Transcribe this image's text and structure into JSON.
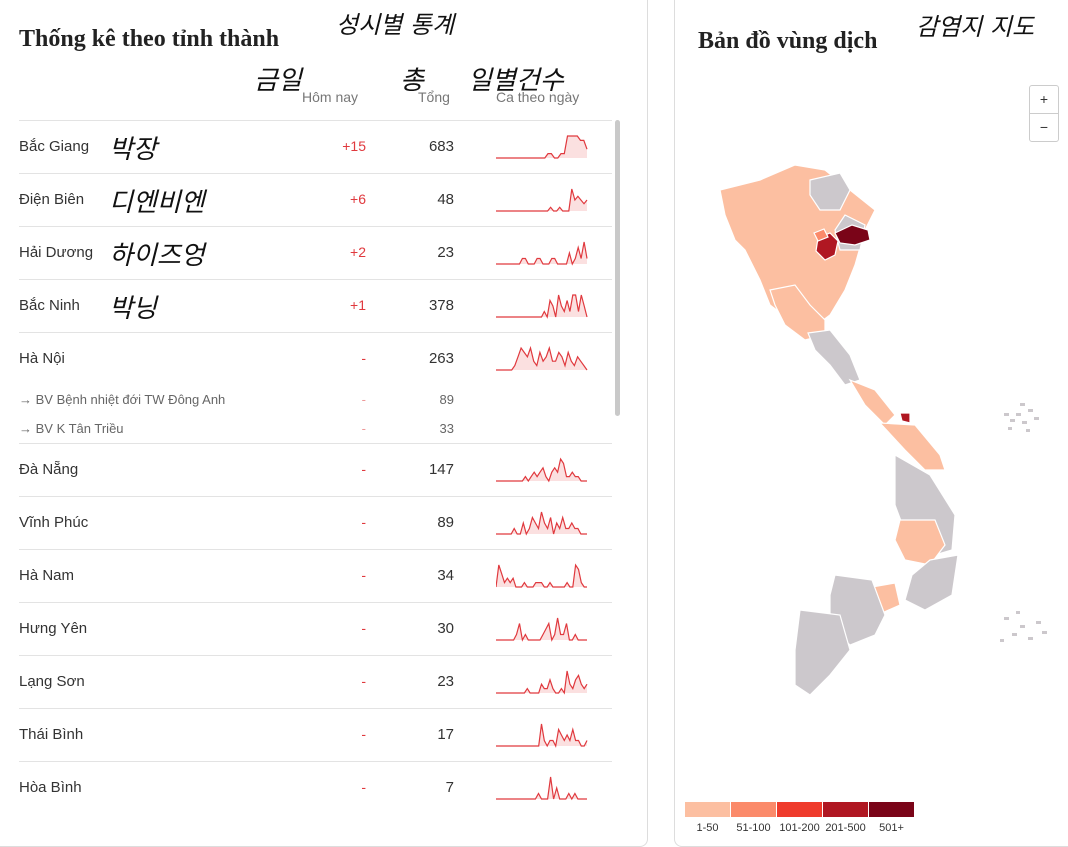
{
  "left": {
    "title": "Thống kê theo tỉnh thành",
    "title_ko": "성시별 통계",
    "headers": {
      "today": "Hôm nay",
      "total": "Tổng",
      "daily": "Ca theo ngày"
    },
    "headers_ko": {
      "today": "금일",
      "total": "총",
      "daily": "일별건수"
    },
    "rows": [
      {
        "name": "Bắc Giang",
        "ko": "박장",
        "today": "+15",
        "total": "683",
        "spark": [
          0,
          0,
          0,
          0,
          0,
          0,
          0,
          0,
          0,
          0,
          0,
          0,
          0,
          0,
          0,
          0,
          1,
          1,
          0,
          0,
          1,
          1,
          5,
          5,
          5,
          5,
          4,
          4,
          2
        ]
      },
      {
        "name": "Điện Biên",
        "ko": "디엔비엔",
        "today": "+6",
        "total": "48",
        "spark": [
          0,
          0,
          0,
          0,
          0,
          0,
          0,
          0,
          0,
          0,
          0,
          0,
          0,
          0,
          0,
          0,
          0,
          0,
          1,
          0,
          0,
          1,
          0,
          0,
          0,
          6,
          3,
          4,
          3,
          2,
          3
        ]
      },
      {
        "name": "Hải Dương",
        "ko": "하이즈엉",
        "today": "+2",
        "total": "23",
        "spark": [
          0,
          0,
          0,
          0,
          0,
          0,
          0,
          0,
          0,
          1,
          1,
          0,
          0,
          0,
          1,
          1,
          0,
          0,
          0,
          1,
          1,
          0,
          0,
          0,
          0,
          2,
          0,
          1,
          3,
          1,
          4,
          1
        ]
      },
      {
        "name": "Bắc Ninh",
        "ko": "박닝",
        "today": "+1",
        "total": "378",
        "spark": [
          0,
          0,
          0,
          0,
          0,
          0,
          0,
          0,
          0,
          0,
          0,
          0,
          0,
          0,
          0,
          0,
          0,
          1,
          0,
          3,
          2,
          0,
          4,
          2,
          1,
          3,
          1,
          4,
          4,
          1,
          4,
          2,
          0
        ]
      },
      {
        "name": "Hà Nội",
        "today": "-",
        "total": "263",
        "spark": [
          0,
          0,
          0,
          0,
          0,
          0,
          1,
          3,
          5,
          4,
          3,
          5,
          2,
          1,
          4,
          2,
          3,
          5,
          2,
          2,
          4,
          3,
          1,
          4,
          2,
          1,
          3,
          2,
          1,
          0
        ]
      },
      {
        "sub": true,
        "name": "→ BV Bệnh nhiệt đới TW Đông Anh",
        "today": "-",
        "total": "89"
      },
      {
        "sub": true,
        "name": "→ BV K Tân Triều",
        "today": "-",
        "total": "33"
      },
      {
        "name": "Đà Nẵng",
        "today": "-",
        "total": "147",
        "spark": [
          0,
          0,
          0,
          0,
          0,
          0,
          0,
          0,
          0,
          0,
          1,
          0,
          1,
          2,
          1,
          2,
          3,
          1,
          0,
          2,
          3,
          2,
          5,
          4,
          1,
          1,
          2,
          1,
          1,
          0,
          0,
          0
        ]
      },
      {
        "name": "Vĩnh Phúc",
        "today": "-",
        "total": "89",
        "spark": [
          0,
          0,
          0,
          0,
          0,
          0,
          1,
          0,
          0,
          2,
          0,
          1,
          3,
          2,
          1,
          4,
          2,
          1,
          3,
          0,
          2,
          1,
          3,
          1,
          1,
          2,
          1,
          1,
          0,
          0,
          0
        ]
      },
      {
        "name": "Hà Nam",
        "today": "-",
        "total": "34",
        "spark": [
          0,
          5,
          3,
          1,
          2,
          1,
          2,
          0,
          0,
          0,
          1,
          0,
          0,
          0,
          1,
          1,
          1,
          0,
          0,
          1,
          0,
          0,
          0,
          0,
          0,
          1,
          0,
          0,
          5,
          4,
          1,
          0,
          0
        ]
      },
      {
        "name": "Hưng Yên",
        "today": "-",
        "total": "30",
        "spark": [
          0,
          0,
          0,
          0,
          0,
          0,
          0,
          1,
          3,
          0,
          1,
          0,
          0,
          0,
          0,
          0,
          1,
          2,
          3,
          0,
          1,
          4,
          1,
          1,
          3,
          0,
          0,
          1,
          0,
          0,
          0,
          0
        ]
      },
      {
        "name": "Lạng Sơn",
        "today": "-",
        "total": "23",
        "spark": [
          0,
          0,
          0,
          0,
          0,
          0,
          0,
          0,
          0,
          0,
          0,
          1,
          0,
          0,
          0,
          0,
          2,
          1,
          1,
          3,
          1,
          0,
          0,
          1,
          0,
          5,
          2,
          1,
          3,
          4,
          2,
          1,
          2
        ]
      },
      {
        "name": "Thái Bình",
        "today": "-",
        "total": "17",
        "spark": [
          0,
          0,
          0,
          0,
          0,
          0,
          0,
          0,
          0,
          0,
          0,
          0,
          0,
          0,
          0,
          0,
          4,
          1,
          0,
          1,
          1,
          0,
          3,
          2,
          1,
          2,
          1,
          3,
          1,
          1,
          0,
          0,
          1
        ]
      },
      {
        "name": "Hòa Bình",
        "today": "-",
        "total": "7",
        "spark": [
          0,
          0,
          0,
          0,
          0,
          0,
          0,
          0,
          0,
          0,
          0,
          0,
          0,
          0,
          1,
          0,
          0,
          0,
          4,
          0,
          2,
          0,
          0,
          0,
          1,
          0,
          1,
          0,
          0,
          0,
          0
        ]
      }
    ]
  },
  "right": {
    "title": "Bản đồ vùng dịch",
    "title_ko": "감염지 지도",
    "zoom_in": "+",
    "zoom_out": "−",
    "legend": [
      {
        "label": "1-50",
        "color": "#fcbfa1"
      },
      {
        "label": "51-100",
        "color": "#fb8a6a"
      },
      {
        "label": "101-200",
        "color": "#ef3b2c"
      },
      {
        "label": "201-500",
        "color": "#b01722"
      },
      {
        "label": "501+",
        "color": "#7a0418"
      }
    ]
  },
  "colors": {
    "accent": "#e0393e",
    "spark_fill": "#fbe0e0",
    "map_gray": "#ccc8cc"
  }
}
